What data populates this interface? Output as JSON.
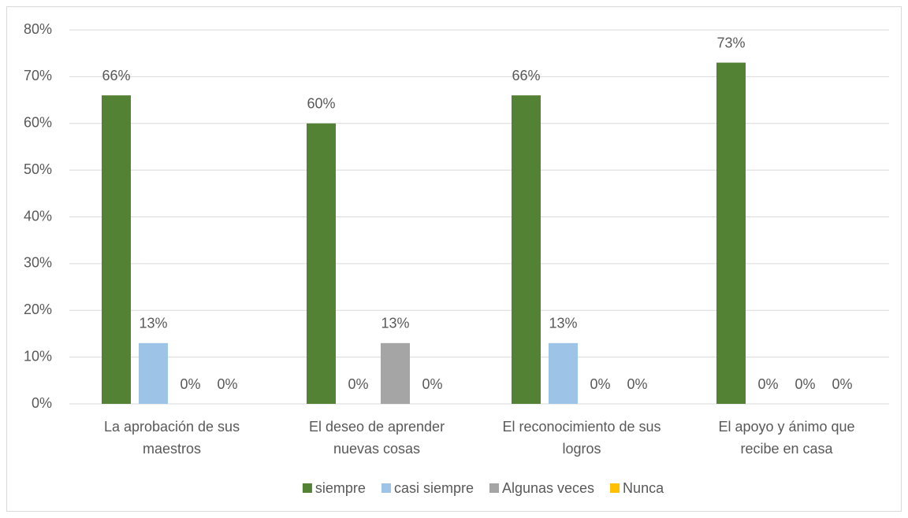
{
  "chart_data": {
    "type": "bar",
    "categories": [
      "La aprobación de sus maestros",
      "El deseo de aprender nuevas cosas",
      "El reconocimiento de sus logros",
      "El apoyo y ánimo que recibe en casa"
    ],
    "series": [
      {
        "name": "siempre",
        "color": "#548235",
        "values": [
          66,
          60,
          66,
          73
        ],
        "value_labels": [
          "66%",
          "60%",
          "66%",
          "73%"
        ]
      },
      {
        "name": "casi siempre",
        "color": "#9dc3e6",
        "values": [
          13,
          0,
          13,
          0
        ],
        "value_labels": [
          "13%",
          "0%",
          "13%",
          "0%"
        ]
      },
      {
        "name": "Algunas veces",
        "color": "#a5a5a5",
        "values": [
          0,
          13,
          0,
          0
        ],
        "value_labels": [
          "0%",
          "13%",
          "0%",
          "0%"
        ]
      },
      {
        "name": "Nunca",
        "color": "#ffc000",
        "values": [
          0,
          0,
          0,
          0
        ],
        "value_labels": [
          "0%",
          "0%",
          "0%",
          "0%"
        ]
      }
    ],
    "ylim": [
      0,
      80
    ],
    "yticks": [
      {
        "value": 0,
        "label": "0%"
      },
      {
        "value": 10,
        "label": "10%"
      },
      {
        "value": 20,
        "label": "20%"
      },
      {
        "value": 30,
        "label": "30%"
      },
      {
        "value": 40,
        "label": "40%"
      },
      {
        "value": 50,
        "label": "50%"
      },
      {
        "value": 60,
        "label": "60%"
      },
      {
        "value": 70,
        "label": "70%"
      },
      {
        "value": 80,
        "label": "80%"
      }
    ],
    "grid": true,
    "legend": "bottom"
  }
}
